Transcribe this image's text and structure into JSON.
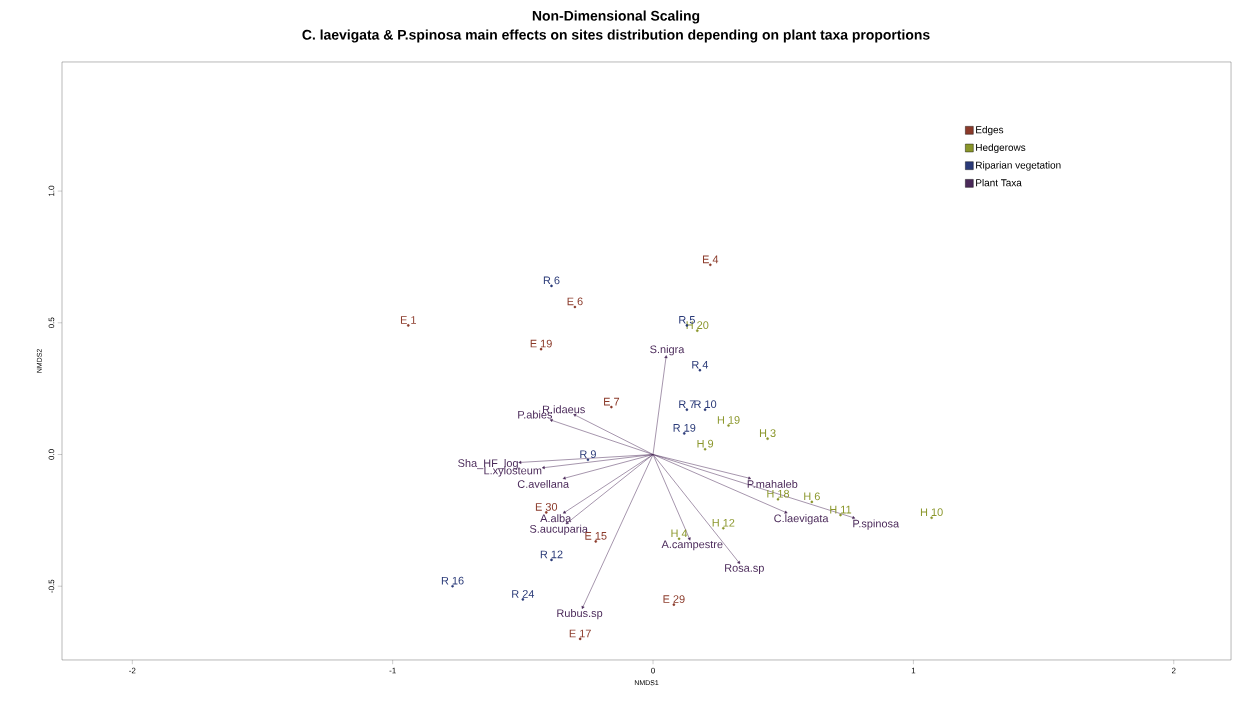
{
  "chart_data": {
    "type": "scatter",
    "title": "Non-Dimensional Scaling",
    "subtitle": "C. laevigata & P.spinosa main effects on sites distribution depending on plant taxa proportions",
    "xlabel": "NMDS1",
    "ylabel": "NMDS2",
    "xlim": [
      -2.27,
      2.22
    ],
    "ylim": [
      -0.78,
      1.49
    ],
    "xticks": [
      -2,
      -1,
      0,
      1,
      2
    ],
    "yticks": [
      -0.5,
      {
        "value": 0,
        "label": "0.0"
      },
      0.5,
      {
        "value": 1,
        "label": "1.0"
      }
    ],
    "grid": false,
    "legend": "top right",
    "series": [
      {
        "name": "Edges",
        "color": "#8b3a2a",
        "marker": "circle",
        "x": [
          0.22,
          -0.3,
          -0.94,
          -0.43,
          -0.16,
          -0.41,
          -0.22,
          0.08,
          -0.28
        ],
        "values": [
          0.72,
          0.56,
          0.49,
          0.4,
          0.18,
          -0.22,
          -0.33,
          -0.57,
          -0.7
        ],
        "value_labels": [
          "E 4",
          "E 6",
          "E 1",
          "E 19",
          "E 7",
          "E 30",
          "E 15",
          "E 29",
          "E 17"
        ]
      },
      {
        "name": "Hedgerows",
        "color": "#8a962a",
        "marker": "circle",
        "x": [
          0.17,
          0.29,
          0.44,
          0.2,
          0.48,
          0.61,
          0.72,
          1.07,
          0.27,
          0.1
        ],
        "values": [
          0.47,
          0.11,
          0.06,
          0.02,
          -0.17,
          -0.18,
          -0.23,
          -0.24,
          -0.28,
          -0.32
        ],
        "value_labels": [
          "H 20",
          "H 19",
          "H 3",
          "H 9",
          "H 18",
          "H 6",
          "H 11",
          "H 10",
          "H 12",
          "H 4"
        ]
      },
      {
        "name": "Riparian vegetation",
        "color": "#2a3a78",
        "marker": "circle",
        "x": [
          -0.39,
          0.13,
          0.18,
          0.13,
          0.2,
          0.12,
          -0.25,
          -0.39,
          -0.77,
          -0.5
        ],
        "values": [
          0.64,
          0.49,
          0.32,
          0.17,
          0.17,
          0.08,
          -0.02,
          -0.4,
          -0.5,
          -0.55
        ],
        "value_labels": [
          "R 6",
          "R 5",
          "R 4",
          "R 7",
          "R 10",
          "R 19",
          "R 9",
          "R 12",
          "R 16",
          "R 24"
        ]
      },
      {
        "name": "Plant Taxa",
        "type": "scatter",
        "marker": "triangle",
        "line_style": "solid",
        "color": "#4b2a5a",
        "x": [
          0.05,
          -0.3,
          -0.39,
          -0.51,
          -0.42,
          -0.34,
          -0.34,
          -0.33,
          -0.27,
          0.14,
          0.33,
          0.37,
          0.51,
          0.77
        ],
        "values": [
          0.37,
          0.15,
          0.13,
          -0.03,
          -0.05,
          -0.09,
          -0.22,
          -0.26,
          -0.58,
          -0.32,
          -0.41,
          -0.09,
          -0.22,
          -0.24
        ],
        "value_labels": [
          "S.nigra",
          "R.idaeus",
          "P.abies",
          "Sha_HF_log",
          "L.xylosteum",
          "C.avellana",
          "A.alba",
          "S.aucuparia",
          "Rubus.sp",
          "A.campestre",
          "Rosa.sp",
          "P.mahaleb",
          "C.laevigata",
          "P.spinosa"
        ]
      }
    ]
  }
}
